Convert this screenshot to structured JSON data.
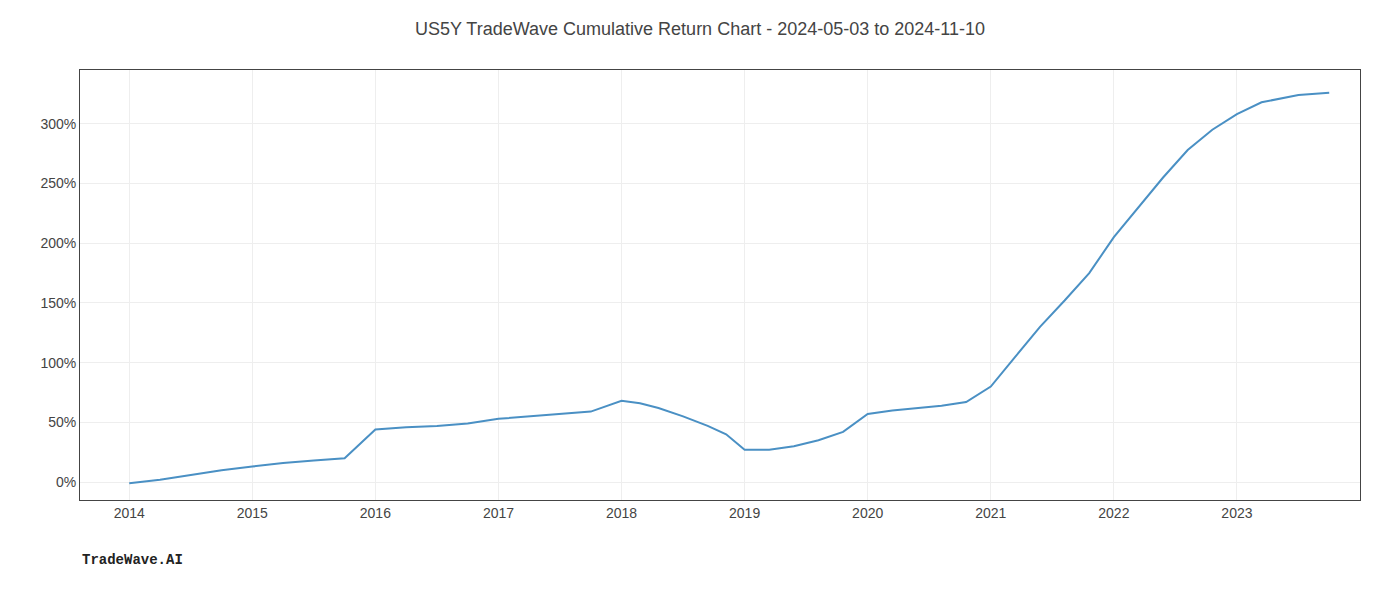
{
  "chart_data": {
    "type": "line",
    "title": "US5Y TradeWave Cumulative Return Chart - 2024-05-03 to 2024-11-10",
    "annotations": [
      "TradeWave.AI"
    ],
    "x": [
      2014.0,
      2014.25,
      2014.5,
      2014.75,
      2015.0,
      2015.25,
      2015.5,
      2015.75,
      2016.0,
      2016.25,
      2016.5,
      2016.75,
      2017.0,
      2017.25,
      2017.5,
      2017.75,
      2018.0,
      2018.15,
      2018.3,
      2018.5,
      2018.7,
      2018.85,
      2019.0,
      2019.2,
      2019.4,
      2019.6,
      2019.8,
      2020.0,
      2020.2,
      2020.4,
      2020.6,
      2020.8,
      2021.0,
      2021.2,
      2021.4,
      2021.6,
      2021.8,
      2022.0,
      2022.2,
      2022.4,
      2022.6,
      2022.8,
      2023.0,
      2023.2,
      2023.5,
      2023.75
    ],
    "values": [
      -1,
      2,
      6,
      10,
      13,
      16,
      18,
      20,
      44,
      46,
      47,
      49,
      53,
      55,
      57,
      59,
      68,
      66,
      62,
      55,
      47,
      40,
      27,
      27,
      30,
      35,
      42,
      57,
      60,
      62,
      64,
      67,
      80,
      105,
      130,
      152,
      175,
      205,
      230,
      255,
      278,
      295,
      308,
      318,
      324,
      326
    ],
    "color": "#4a90c4",
    "xlim": [
      2013.6,
      2024.0
    ],
    "ylim": [
      -15,
      345
    ],
    "xticks": [
      2014,
      2015,
      2016,
      2017,
      2018,
      2019,
      2020,
      2021,
      2022,
      2023
    ],
    "yticks": [
      {
        "value": 0,
        "label": "0%"
      },
      {
        "value": 50,
        "label": "50%"
      },
      {
        "value": 100,
        "label": "100%"
      },
      {
        "value": 150,
        "label": "150%"
      },
      {
        "value": 200,
        "label": "200%"
      },
      {
        "value": 250,
        "label": "250%"
      },
      {
        "value": 300,
        "label": "300%"
      }
    ],
    "grid": true
  }
}
